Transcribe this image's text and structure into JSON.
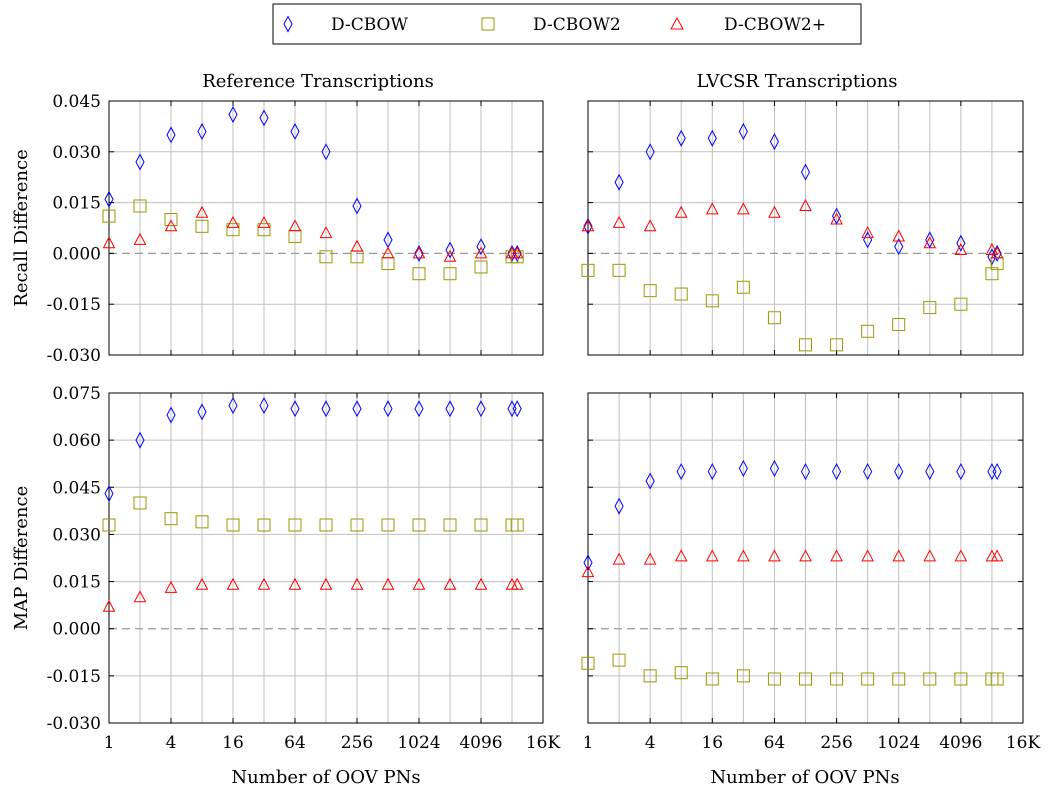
{
  "legend": {
    "items": [
      {
        "name": "D-CBOW",
        "color": "#0000ff",
        "marker": "diamond"
      },
      {
        "name": "D-CBOW2",
        "color": "#999900",
        "marker": "square"
      },
      {
        "name": "D-CBOW2+",
        "color": "#ff0000",
        "marker": "triangle"
      }
    ],
    "placement": "top-center"
  },
  "x_axis_label": "Number of OOV PNs",
  "x_tick_labels": [
    "1",
    "4",
    "16",
    "64",
    "256",
    "1024",
    "4096",
    "16K"
  ],
  "chart_data": [
    {
      "type": "scatter",
      "panel": "top-left",
      "title": "Reference Transcriptions",
      "xlabel": "",
      "ylabel": "Recall Difference",
      "x_scale": "log2",
      "ylim": [
        -0.03,
        0.045
      ],
      "yticks": [
        "-0.030",
        "-0.015",
        "0.000",
        "0.015",
        "0.030",
        "0.045"
      ],
      "grid": true,
      "zero_line": true,
      "series": [
        {
          "name": "D-CBOW",
          "points": [
            [
              1,
              0.016
            ],
            [
              2,
              0.027
            ],
            [
              4,
              0.035
            ],
            [
              8,
              0.036
            ],
            [
              16,
              0.041
            ],
            [
              32,
              0.04
            ],
            [
              64,
              0.036
            ],
            [
              128,
              0.03
            ],
            [
              256,
              0.014
            ],
            [
              512,
              0.004
            ],
            [
              1024,
              0.0
            ],
            [
              2048,
              0.001
            ],
            [
              4096,
              0.002
            ],
            [
              8192,
              0.0
            ],
            [
              9200,
              0.0
            ]
          ]
        },
        {
          "name": "D-CBOW2",
          "points": [
            [
              1,
              0.011
            ],
            [
              2,
              0.014
            ],
            [
              4,
              0.01
            ],
            [
              8,
              0.008
            ],
            [
              16,
              0.007
            ],
            [
              32,
              0.007
            ],
            [
              64,
              0.005
            ],
            [
              128,
              -0.001
            ],
            [
              256,
              -0.001
            ],
            [
              512,
              -0.003
            ],
            [
              1024,
              -0.006
            ],
            [
              2048,
              -0.006
            ],
            [
              4096,
              -0.004
            ],
            [
              8192,
              -0.001
            ],
            [
              9200,
              -0.001
            ]
          ]
        },
        {
          "name": "D-CBOW2+",
          "points": [
            [
              1,
              0.003
            ],
            [
              2,
              0.004
            ],
            [
              4,
              0.008
            ],
            [
              8,
              0.012
            ],
            [
              16,
              0.009
            ],
            [
              32,
              0.009
            ],
            [
              64,
              0.008
            ],
            [
              128,
              0.006
            ],
            [
              256,
              0.002
            ],
            [
              512,
              0.0
            ],
            [
              1024,
              0.0
            ],
            [
              2048,
              -0.001
            ],
            [
              4096,
              0.0
            ],
            [
              8192,
              0.0
            ],
            [
              9200,
              0.0
            ]
          ]
        }
      ]
    },
    {
      "type": "scatter",
      "panel": "top-right",
      "title": "LVCSR Transcriptions",
      "xlabel": "",
      "ylabel": "",
      "x_scale": "log2",
      "ylim": [
        -0.03,
        0.045
      ],
      "grid": true,
      "zero_line": true,
      "series": [
        {
          "name": "D-CBOW",
          "points": [
            [
              1,
              0.008
            ],
            [
              2,
              0.021
            ],
            [
              4,
              0.03
            ],
            [
              8,
              0.034
            ],
            [
              16,
              0.034
            ],
            [
              32,
              0.036
            ],
            [
              64,
              0.033
            ],
            [
              128,
              0.024
            ],
            [
              256,
              0.011
            ],
            [
              512,
              0.004
            ],
            [
              1024,
              0.002
            ],
            [
              2048,
              0.004
            ],
            [
              4096,
              0.003
            ],
            [
              8192,
              -0.001
            ],
            [
              9200,
              0.0
            ]
          ]
        },
        {
          "name": "D-CBOW2",
          "points": [
            [
              1,
              -0.005
            ],
            [
              2,
              -0.005
            ],
            [
              4,
              -0.011
            ],
            [
              8,
              -0.012
            ],
            [
              16,
              -0.014
            ],
            [
              32,
              -0.01
            ],
            [
              64,
              -0.019
            ],
            [
              128,
              -0.027
            ],
            [
              256,
              -0.027
            ],
            [
              512,
              -0.023
            ],
            [
              1024,
              -0.021
            ],
            [
              2048,
              -0.016
            ],
            [
              4096,
              -0.015
            ],
            [
              8192,
              -0.006
            ],
            [
              9200,
              -0.003
            ]
          ]
        },
        {
          "name": "D-CBOW2+",
          "points": [
            [
              1,
              0.008
            ],
            [
              2,
              0.009
            ],
            [
              4,
              0.008
            ],
            [
              8,
              0.012
            ],
            [
              16,
              0.013
            ],
            [
              32,
              0.013
            ],
            [
              64,
              0.012
            ],
            [
              128,
              0.014
            ],
            [
              256,
              0.01
            ],
            [
              512,
              0.006
            ],
            [
              1024,
              0.005
            ],
            [
              2048,
              0.003
            ],
            [
              4096,
              0.001
            ],
            [
              8192,
              0.001
            ],
            [
              9200,
              0.0
            ]
          ]
        }
      ]
    },
    {
      "type": "scatter",
      "panel": "bottom-left",
      "title": "",
      "xlabel": "Number of OOV PNs",
      "ylabel": "MAP Difference",
      "x_scale": "log2",
      "ylim": [
        -0.03,
        0.075
      ],
      "yticks": [
        "-0.030",
        "-0.015",
        "0.000",
        "0.015",
        "0.030",
        "0.045",
        "0.060",
        "0.075"
      ],
      "grid": true,
      "zero_line": true,
      "series": [
        {
          "name": "D-CBOW",
          "points": [
            [
              1,
              0.043
            ],
            [
              2,
              0.06
            ],
            [
              4,
              0.068
            ],
            [
              8,
              0.069
            ],
            [
              16,
              0.071
            ],
            [
              32,
              0.071
            ],
            [
              64,
              0.07
            ],
            [
              128,
              0.07
            ],
            [
              256,
              0.07
            ],
            [
              512,
              0.07
            ],
            [
              1024,
              0.07
            ],
            [
              2048,
              0.07
            ],
            [
              4096,
              0.07
            ],
            [
              8192,
              0.07
            ],
            [
              9200,
              0.07
            ]
          ]
        },
        {
          "name": "D-CBOW2",
          "points": [
            [
              1,
              0.033
            ],
            [
              2,
              0.04
            ],
            [
              4,
              0.035
            ],
            [
              8,
              0.034
            ],
            [
              16,
              0.033
            ],
            [
              32,
              0.033
            ],
            [
              64,
              0.033
            ],
            [
              128,
              0.033
            ],
            [
              256,
              0.033
            ],
            [
              512,
              0.033
            ],
            [
              1024,
              0.033
            ],
            [
              2048,
              0.033
            ],
            [
              4096,
              0.033
            ],
            [
              8192,
              0.033
            ],
            [
              9200,
              0.033
            ]
          ]
        },
        {
          "name": "D-CBOW2+",
          "points": [
            [
              1,
              0.007
            ],
            [
              2,
              0.01
            ],
            [
              4,
              0.013
            ],
            [
              8,
              0.014
            ],
            [
              16,
              0.014
            ],
            [
              32,
              0.014
            ],
            [
              64,
              0.014
            ],
            [
              128,
              0.014
            ],
            [
              256,
              0.014
            ],
            [
              512,
              0.014
            ],
            [
              1024,
              0.014
            ],
            [
              2048,
              0.014
            ],
            [
              4096,
              0.014
            ],
            [
              8192,
              0.014
            ],
            [
              9200,
              0.014
            ]
          ]
        }
      ]
    },
    {
      "type": "scatter",
      "panel": "bottom-right",
      "title": "",
      "xlabel": "Number of OOV PNs",
      "ylabel": "",
      "x_scale": "log2",
      "ylim": [
        -0.03,
        0.075
      ],
      "grid": true,
      "zero_line": true,
      "series": [
        {
          "name": "D-CBOW",
          "points": [
            [
              1,
              0.021
            ],
            [
              2,
              0.039
            ],
            [
              4,
              0.047
            ],
            [
              8,
              0.05
            ],
            [
              16,
              0.05
            ],
            [
              32,
              0.051
            ],
            [
              64,
              0.051
            ],
            [
              128,
              0.05
            ],
            [
              256,
              0.05
            ],
            [
              512,
              0.05
            ],
            [
              1024,
              0.05
            ],
            [
              2048,
              0.05
            ],
            [
              4096,
              0.05
            ],
            [
              8192,
              0.05
            ],
            [
              9200,
              0.05
            ]
          ]
        },
        {
          "name": "D-CBOW2",
          "points": [
            [
              1,
              -0.011
            ],
            [
              2,
              -0.01
            ],
            [
              4,
              -0.015
            ],
            [
              8,
              -0.014
            ],
            [
              16,
              -0.016
            ],
            [
              32,
              -0.015
            ],
            [
              64,
              -0.016
            ],
            [
              128,
              -0.016
            ],
            [
              256,
              -0.016
            ],
            [
              512,
              -0.016
            ],
            [
              1024,
              -0.016
            ],
            [
              2048,
              -0.016
            ],
            [
              4096,
              -0.016
            ],
            [
              8192,
              -0.016
            ],
            [
              9200,
              -0.016
            ]
          ]
        },
        {
          "name": "D-CBOW2+",
          "points": [
            [
              1,
              0.018
            ],
            [
              2,
              0.022
            ],
            [
              4,
              0.022
            ],
            [
              8,
              0.023
            ],
            [
              16,
              0.023
            ],
            [
              32,
              0.023
            ],
            [
              64,
              0.023
            ],
            [
              128,
              0.023
            ],
            [
              256,
              0.023
            ],
            [
              512,
              0.023
            ],
            [
              1024,
              0.023
            ],
            [
              2048,
              0.023
            ],
            [
              4096,
              0.023
            ],
            [
              8192,
              0.023
            ],
            [
              9200,
              0.023
            ]
          ]
        }
      ]
    }
  ]
}
